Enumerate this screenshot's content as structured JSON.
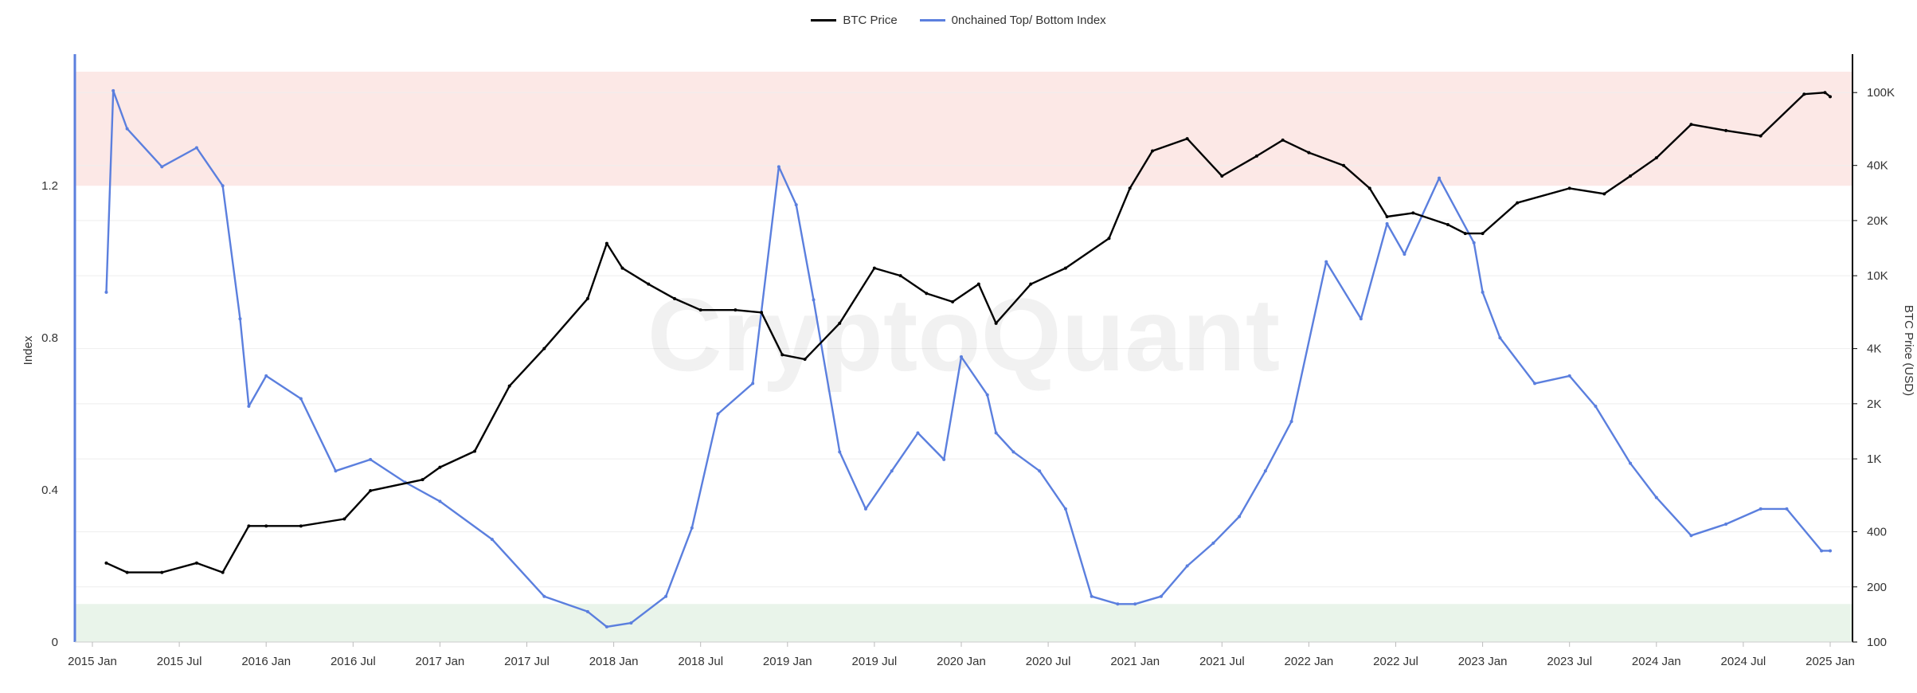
{
  "chart_data": {
    "type": "line",
    "legend": [
      {
        "name": "BTC Price",
        "color": "#000000"
      },
      {
        "name": "0nchained Top/ Bottom Index",
        "color": "#5b7fde"
      }
    ],
    "watermark": "CryptoQuant",
    "x_ticks": [
      "2015 Jan",
      "2015 Jul",
      "2016 Jan",
      "2016 Jul",
      "2017 Jan",
      "2017 Jul",
      "2018 Jan",
      "2018 Jul",
      "2019 Jan",
      "2019 Jul",
      "2020 Jan",
      "2020 Jul",
      "2021 Jan",
      "2021 Jul",
      "2022 Jan",
      "2022 Jul",
      "2023 Jan",
      "2023 Jul",
      "2024 Jan",
      "2024 Jul",
      "2025 Jan"
    ],
    "left_axis": {
      "title": "Index",
      "range": [
        0,
        1.5
      ],
      "ticks": [
        "0",
        "0.4",
        "0.8",
        "1.2"
      ],
      "tick_values": [
        0,
        0.4,
        0.8,
        1.2
      ]
    },
    "right_axis": {
      "title": "BTC Price (USD)",
      "scale": "log",
      "range": [
        100,
        130000
      ],
      "ticks": [
        "100",
        "200",
        "400",
        "1K",
        "2K",
        "4K",
        "10K",
        "20K",
        "40K",
        "100K"
      ],
      "tick_values": [
        100,
        200,
        400,
        1000,
        2000,
        4000,
        10000,
        20000,
        40000,
        100000
      ]
    },
    "bands": [
      {
        "name": "top-zone",
        "from": 1.2,
        "to": 1.5,
        "color": "#fce8e6"
      },
      {
        "name": "bottom-zone",
        "from": 0,
        "to": 0.1,
        "color": "#e9f4ea"
      }
    ],
    "series": [
      {
        "name": "BTC Price",
        "axis": "right",
        "color": "#000000",
        "x": [
          2015.08,
          2015.2,
          2015.4,
          2015.6,
          2015.75,
          2015.9,
          2016.0,
          2016.2,
          2016.45,
          2016.6,
          2016.9,
          2017.0,
          2017.2,
          2017.4,
          2017.6,
          2017.85,
          2017.96,
          2018.05,
          2018.2,
          2018.35,
          2018.5,
          2018.7,
          2018.85,
          2018.97,
          2019.1,
          2019.3,
          2019.5,
          2019.65,
          2019.8,
          2019.95,
          2020.1,
          2020.2,
          2020.4,
          2020.6,
          2020.85,
          2020.97,
          2021.1,
          2021.3,
          2021.5,
          2021.7,
          2021.85,
          2022.0,
          2022.2,
          2022.35,
          2022.45,
          2022.6,
          2022.8,
          2022.9,
          2023.0,
          2023.2,
          2023.5,
          2023.7,
          2023.85,
          2024.0,
          2024.2,
          2024.4,
          2024.6,
          2024.85,
          2024.97,
          2025.0
        ],
        "y": [
          270,
          240,
          240,
          270,
          240,
          430,
          430,
          430,
          470,
          670,
          770,
          900,
          1100,
          2500,
          4000,
          7500,
          15000,
          11000,
          9000,
          7500,
          6500,
          6500,
          6300,
          3700,
          3500,
          5500,
          11000,
          10000,
          8000,
          7200,
          9000,
          5500,
          9000,
          11000,
          16000,
          30000,
          48000,
          56000,
          35000,
          45000,
          55000,
          47000,
          40000,
          30000,
          21000,
          22000,
          19000,
          17000,
          17000,
          25000,
          30000,
          28000,
          35000,
          44000,
          67000,
          62000,
          58000,
          98000,
          100000,
          95000
        ]
      },
      {
        "name": "0nchained Top/ Bottom Index",
        "axis": "left",
        "color": "#5b7fde",
        "x": [
          2015.08,
          2015.12,
          2015.2,
          2015.4,
          2015.6,
          2015.75,
          2015.85,
          2015.9,
          2016.0,
          2016.2,
          2016.4,
          2016.6,
          2016.8,
          2017.0,
          2017.3,
          2017.6,
          2017.85,
          2017.96,
          2018.1,
          2018.3,
          2018.45,
          2018.6,
          2018.8,
          2018.95,
          2019.05,
          2019.15,
          2019.3,
          2019.45,
          2019.6,
          2019.75,
          2019.9,
          2020.0,
          2020.15,
          2020.2,
          2020.3,
          2020.45,
          2020.6,
          2020.75,
          2020.9,
          2021.0,
          2021.15,
          2021.3,
          2021.45,
          2021.6,
          2021.75,
          2021.9,
          2022.1,
          2022.3,
          2022.45,
          2022.55,
          2022.75,
          2022.95,
          2023.0,
          2023.1,
          2023.3,
          2023.5,
          2023.65,
          2023.85,
          2024.0,
          2024.2,
          2024.4,
          2024.6,
          2024.75,
          2024.95,
          2025.0
        ],
        "y": [
          0.92,
          1.45,
          1.35,
          1.25,
          1.3,
          1.2,
          0.85,
          0.62,
          0.7,
          0.64,
          0.45,
          0.48,
          0.42,
          0.37,
          0.27,
          0.12,
          0.08,
          0.04,
          0.05,
          0.12,
          0.3,
          0.6,
          0.68,
          1.25,
          1.15,
          0.9,
          0.5,
          0.35,
          0.45,
          0.55,
          0.48,
          0.75,
          0.65,
          0.55,
          0.5,
          0.45,
          0.35,
          0.12,
          0.1,
          0.1,
          0.12,
          0.2,
          0.26,
          0.33,
          0.45,
          0.58,
          1.0,
          0.85,
          1.1,
          1.02,
          1.22,
          1.05,
          0.92,
          0.8,
          0.68,
          0.7,
          0.62,
          0.47,
          0.38,
          0.28,
          0.31,
          0.35,
          0.35,
          0.24,
          0.24
        ]
      }
    ]
  }
}
